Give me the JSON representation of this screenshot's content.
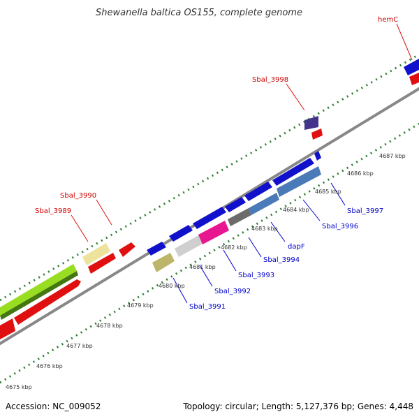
{
  "title": "Shewanella baltica OS155, complete genome",
  "footer": {
    "accession": "Accession: NC_009052",
    "topology": "Topology: circular; Length: 5,127,376 bp; Genes: 4,448"
  },
  "colors": {
    "background": "#ffffff",
    "backbone": "#999999",
    "tick": "#2e7d32",
    "forward_cds": "#1111cc",
    "reverse_cds": "#e01010",
    "label_red": "#cc0000",
    "label_blue": "#0000cc"
  },
  "kbp_ticks": [
    "4675 kbp",
    "4676 kbp",
    "4677 kbp",
    "4678 kbp",
    "4679 kbp",
    "4680 kbp",
    "4681 kbp",
    "4682 kbp",
    "4683 kbp",
    "4684 kbp",
    "4685 kbp",
    "4686 kbp",
    "4687 kbp"
  ],
  "gene_labels": {
    "hemC": "hemC",
    "sbal_3998": "Sbal_3998",
    "sbal_3990": "Sbal_3990",
    "sbal_3989": "Sbal_3989",
    "sbal_3991": "Sbal_3991",
    "sbal_3992": "Sbal_3992",
    "sbal_3993": "Sbal_3993",
    "sbal_3994": "Sbal_3994",
    "dapF": "dapF",
    "sbal_3996": "Sbal_3996",
    "sbal_3997": "Sbal_3997"
  }
}
